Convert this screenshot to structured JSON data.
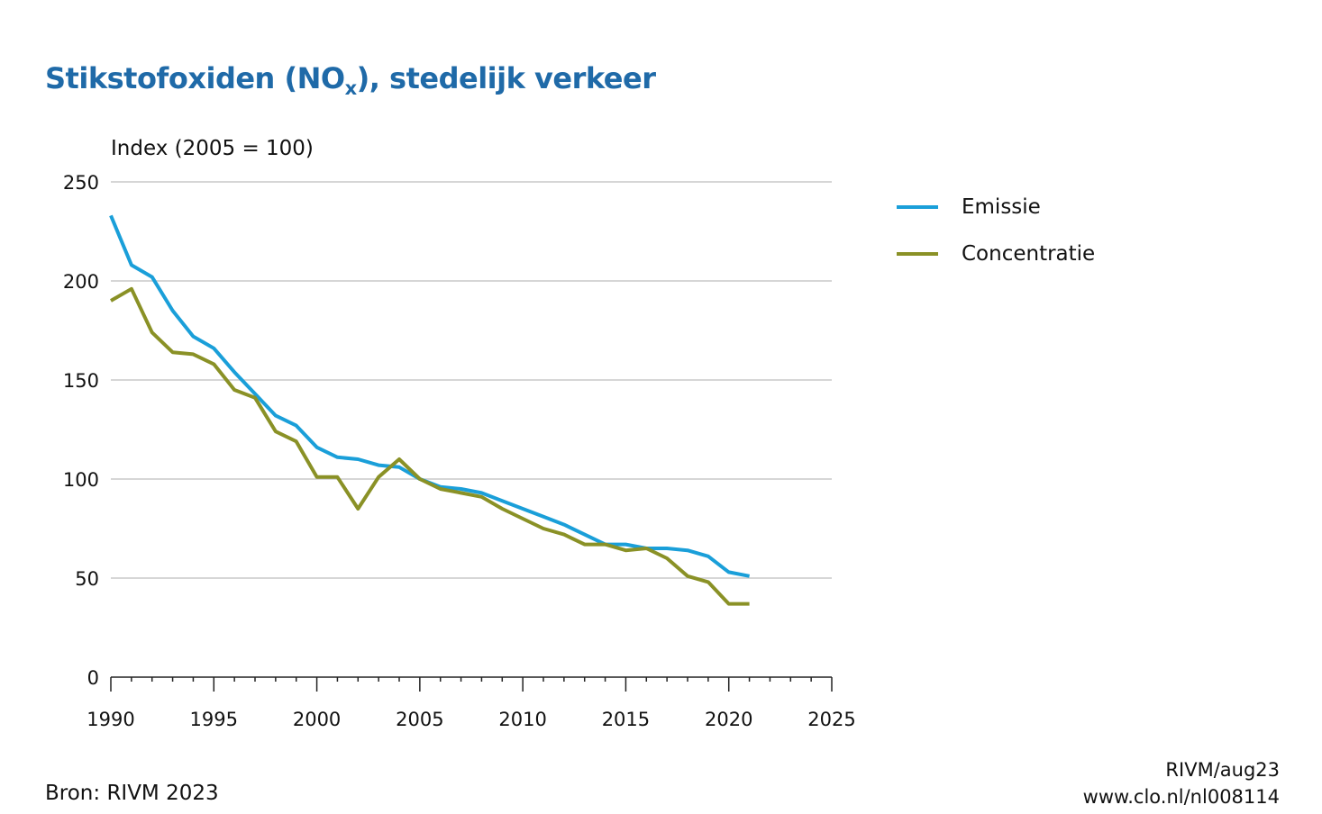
{
  "title": {
    "main": "Stikstofoxiden (NO",
    "sub": "x",
    "rest": "), stedelijk verkeer"
  },
  "source": "Bron: RIVM 2023",
  "credits": {
    "line1": "RIVM/aug23",
    "line2": "www.clo.nl/nl008114"
  },
  "colors": {
    "emissie": "#1a9fd9",
    "concentratie": "#8a9126",
    "grid": "#c8c8c8",
    "title": "#1f6aa8"
  },
  "chart_data": {
    "type": "line",
    "title": "Stikstofoxiden (NOx), stedelijk verkeer",
    "ylabel": "Index (2005 = 100)",
    "xlabel": "",
    "xlim": [
      1990,
      2025
    ],
    "ylim": [
      0,
      250
    ],
    "xticks": [
      1990,
      1995,
      2000,
      2005,
      2010,
      2015,
      2020,
      2025
    ],
    "yticks": [
      0,
      50,
      100,
      150,
      200,
      250
    ],
    "grid": true,
    "legend_position": "right",
    "x": [
      1990,
      1991,
      1992,
      1993,
      1994,
      1995,
      1996,
      1997,
      1998,
      1999,
      2000,
      2001,
      2002,
      2003,
      2004,
      2005,
      2006,
      2007,
      2008,
      2009,
      2010,
      2011,
      2012,
      2013,
      2014,
      2015,
      2016,
      2017,
      2018,
      2019,
      2020,
      2021
    ],
    "series": [
      {
        "name": "Emissie",
        "color": "#1a9fd9",
        "values": [
          233,
          208,
          202,
          185,
          172,
          166,
          154,
          143,
          132,
          127,
          116,
          111,
          110,
          107,
          106,
          100,
          96,
          95,
          93,
          89,
          85,
          81,
          77,
          72,
          67,
          67,
          65,
          65,
          64,
          61,
          53,
          51
        ]
      },
      {
        "name": "Concentratie",
        "color": "#8a9126",
        "values": [
          190,
          196,
          174,
          164,
          163,
          158,
          145,
          141,
          124,
          119,
          101,
          101,
          85,
          101,
          110,
          100,
          95,
          93,
          91,
          85,
          80,
          75,
          72,
          67,
          67,
          64,
          65,
          60,
          51,
          48,
          37,
          37
        ]
      }
    ]
  }
}
